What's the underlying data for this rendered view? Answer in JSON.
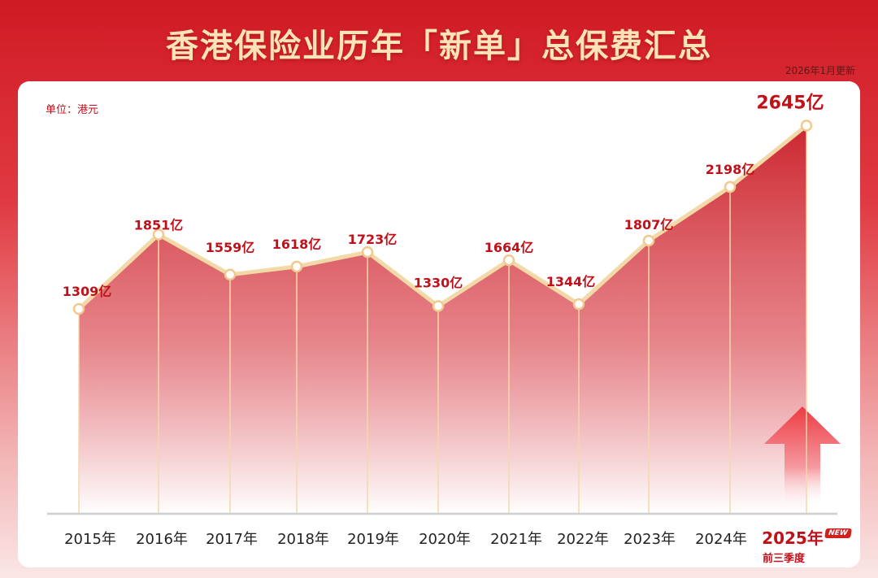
{
  "header": {
    "title": "香港保险业历年「新单」总保费汇总",
    "update_note": "2026年1月更新"
  },
  "chart_data": {
    "type": "area",
    "unit_label": "单位：港元",
    "categories": [
      "2015年",
      "2016年",
      "2017年",
      "2018年",
      "2019年",
      "2020年",
      "2021年",
      "2022年",
      "2023年",
      "2024年",
      "2025年"
    ],
    "values": [
      1309,
      1851,
      1559,
      1618,
      1723,
      1330,
      1664,
      1344,
      1807,
      2198,
      2645
    ],
    "labels": [
      "1309亿",
      "1851亿",
      "1559亿",
      "1618亿",
      "1723亿",
      "1330亿",
      "1664亿",
      "1344亿",
      "1807亿",
      "2198亿",
      "2645亿"
    ],
    "last_category_note": "前三季度",
    "badge": "NEW",
    "colors": {
      "accent": "#c0101a",
      "line": "#f4d9a8",
      "fill_top": "#c8141e"
    }
  }
}
